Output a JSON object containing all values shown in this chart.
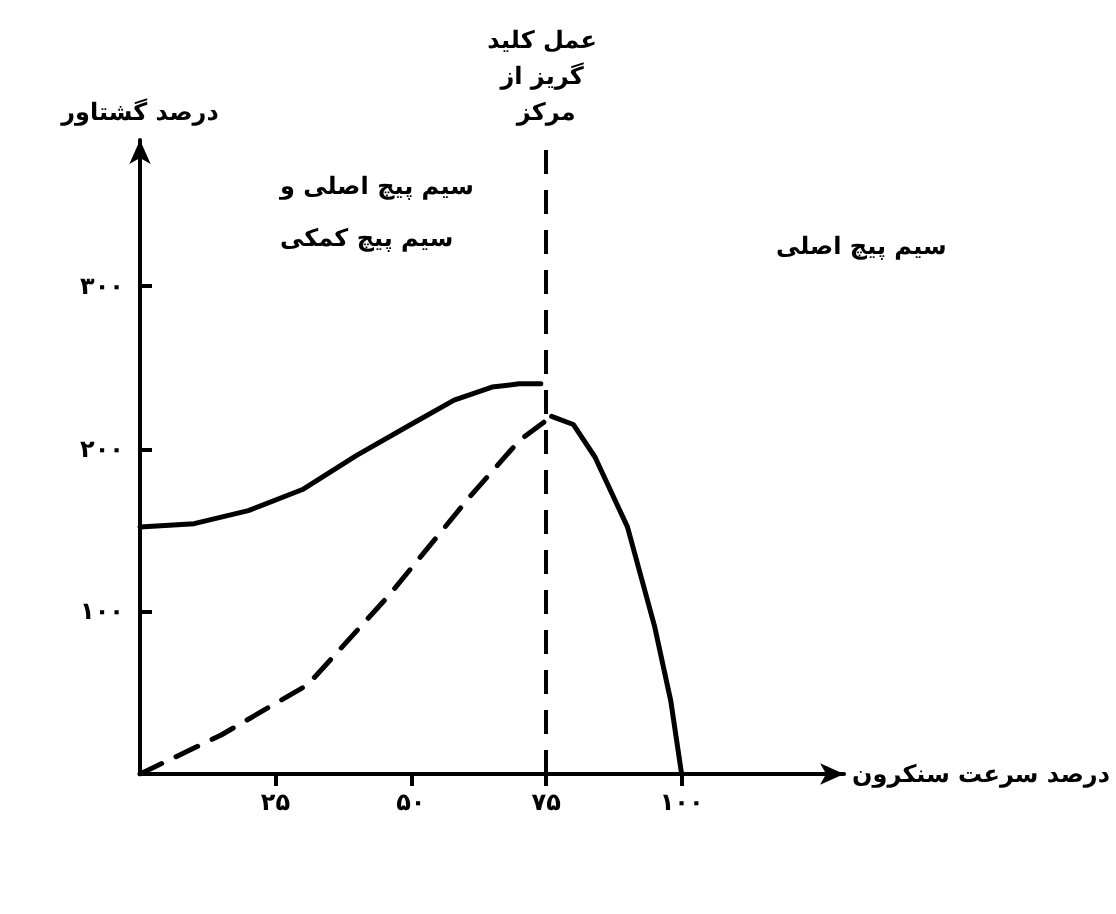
{
  "chart_data": {
    "type": "line",
    "xlabel": "درصد سرعت سنکرون",
    "ylabel": "درصد گشتاور",
    "xlim": [
      0,
      130
    ],
    "ylim": [
      0,
      390
    ],
    "xticks": [
      {
        "value": 25,
        "label": "۲۵"
      },
      {
        "value": 50,
        "label": "۵۰"
      },
      {
        "value": 75,
        "label": "۷۵"
      },
      {
        "value": 100,
        "label": "۱۰۰"
      }
    ],
    "yticks": [
      {
        "value": 100,
        "label": "۱۰۰"
      },
      {
        "value": 200,
        "label": "۲۰۰"
      },
      {
        "value": 300,
        "label": "۳۰۰"
      }
    ],
    "grid": false,
    "marker": "none",
    "series": [
      {
        "color": "#000000",
        "line_style": "solid",
        "x": [
          0,
          10,
          20,
          30,
          40,
          50,
          58,
          65,
          70,
          74,
          74
        ],
        "values": [
          152,
          154,
          162,
          175,
          196,
          215,
          230,
          238,
          240,
          240,
          240
        ]
      },
      {
        "color": "#000000",
        "line_style": "dashed",
        "x": [
          0,
          15,
          31,
          46,
          61,
          70,
          76
        ],
        "values": [
          0,
          24,
          55,
          110,
          171,
          205,
          220
        ]
      },
      {
        "color": "#000000",
        "line_style": "solid",
        "x": [
          76,
          80,
          84,
          90,
          95,
          98,
          100
        ],
        "values": [
          220,
          215,
          195,
          152,
          91,
          45,
          0
        ]
      }
    ],
    "ref_lines": [
      {
        "axis": "x",
        "value": 75,
        "label": "عمل کلید گریز از مرکز",
        "line_style": "dashed",
        "color": "#000000"
      }
    ],
    "annotations": [
      "سیم پیچ اصلی و سیم پیچ کمکی",
      "سیم پیچ اصلی"
    ]
  }
}
